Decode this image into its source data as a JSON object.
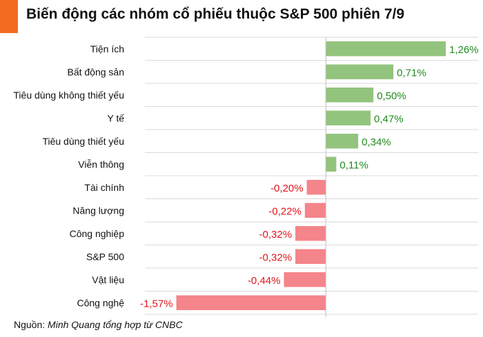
{
  "header": {
    "title": "Biến động các nhóm cổ phiếu thuộc S&P 500 phiên 7/9",
    "accent_color": "#f26b21"
  },
  "source": {
    "prefix": "Nguồn: ",
    "text": "Minh Quang tổng hợp từ CNBC"
  },
  "colors": {
    "positive_bar": "#93c47d",
    "negative_bar": "#f4858a",
    "positive_label": "#1f8a1f",
    "negative_label": "#e0151d",
    "grid": "#d9d9d9",
    "zero_line": "#bfbfbf"
  },
  "chart_data": {
    "type": "bar",
    "orientation": "horizontal",
    "title": "Biến động các nhóm cổ phiếu thuộc S&P 500 phiên 7/9",
    "xlabel": "",
    "ylabel": "",
    "categories": [
      "Tiện ích",
      "Bất động sản",
      "Tiêu dùng không thiết yếu",
      "Y tế",
      "Tiêu dùng thiết yếu",
      "Viễn thông",
      "Tài chính",
      "Năng lượng",
      "Công nghiệp",
      "S&P 500",
      "Vật liệu",
      "Công nghệ"
    ],
    "values": [
      1.26,
      0.71,
      0.5,
      0.47,
      0.34,
      0.11,
      -0.2,
      -0.22,
      -0.32,
      -0.32,
      -0.44,
      -1.57
    ],
    "value_labels": [
      "1,26%",
      "0,71%",
      "0,50%",
      "0,47%",
      "0,34%",
      "0,11%",
      "-0,20%",
      "-0,22%",
      "-0,32%",
      "-0,32%",
      "-0,44%",
      "-1,57%"
    ],
    "xlim": [
      -1.9,
      1.6
    ],
    "grid": true,
    "legend": "none"
  }
}
